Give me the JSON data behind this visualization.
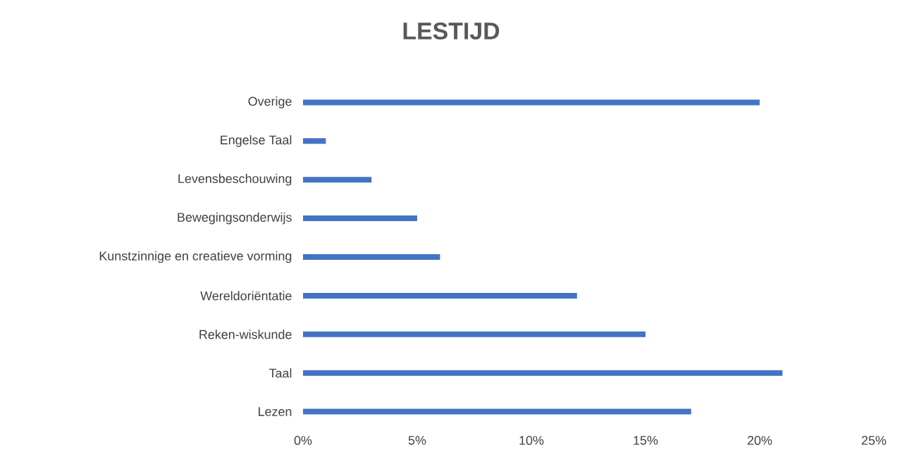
{
  "chart_data": {
    "type": "bar",
    "orientation": "horizontal",
    "title": "LESTIJD",
    "categories": [
      "Overige",
      "Engelse Taal",
      "Levensbeschouwing",
      "Bewegingsonderwijs",
      "Kunstzinnige en creatieve vorming",
      "Wereldoriëntatie",
      "Reken-wiskunde",
      "Taal",
      "Lezen"
    ],
    "values": [
      20,
      1,
      3,
      5,
      6,
      12,
      15,
      21,
      17
    ],
    "color": "#4472c4",
    "xlim": [
      0,
      25
    ],
    "xticks": [
      {
        "value": 0,
        "label": "0%"
      },
      {
        "value": 5,
        "label": "5%"
      },
      {
        "value": 10,
        "label": "10%"
      },
      {
        "value": 15,
        "label": "15%"
      },
      {
        "value": 20,
        "label": "20%"
      },
      {
        "value": 25,
        "label": "25%"
      }
    ]
  }
}
